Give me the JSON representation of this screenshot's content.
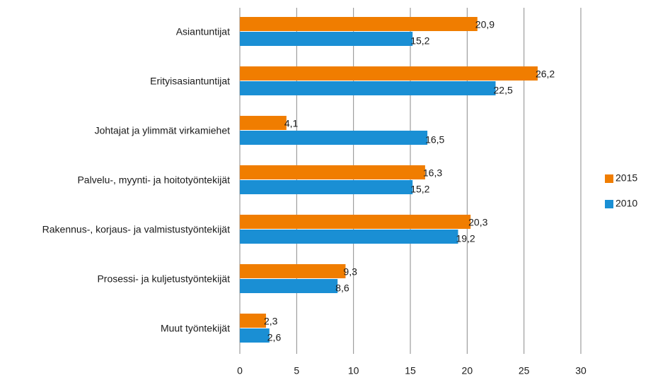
{
  "chart_data": {
    "type": "hbar",
    "categories": [
      "Asiantuntijat",
      "Erityisasiantuntijat",
      "Johtajat ja ylimmät virkamiehet",
      "Palvelu-, myynti- ja hoitotyöntekijät",
      "Rakennus-, korjaus- ja valmistustyöntekijät",
      "Prosessi- ja kuljetustyöntekijät",
      "Muut työntekijät"
    ],
    "series": [
      {
        "name": "2015",
        "color": "#f07d00",
        "values": [
          20.9,
          26.2,
          4.1,
          16.3,
          20.3,
          9.3,
          2.3
        ],
        "value_labels": [
          "20,9",
          "26,2",
          "4,1",
          "16,3",
          "20,3",
          "9,3",
          "2,3"
        ]
      },
      {
        "name": "2010",
        "color": "#1a8fd4",
        "values": [
          15.2,
          22.5,
          16.5,
          15.2,
          19.2,
          8.6,
          2.6
        ],
        "value_labels": [
          "15,2",
          "22,5",
          "16,5",
          "15,2",
          "19,2",
          "8,6",
          "2,6"
        ]
      }
    ],
    "xlim": [
      0,
      30
    ],
    "xticks": [
      0,
      5,
      10,
      15,
      20,
      25,
      30
    ],
    "grid": true
  }
}
